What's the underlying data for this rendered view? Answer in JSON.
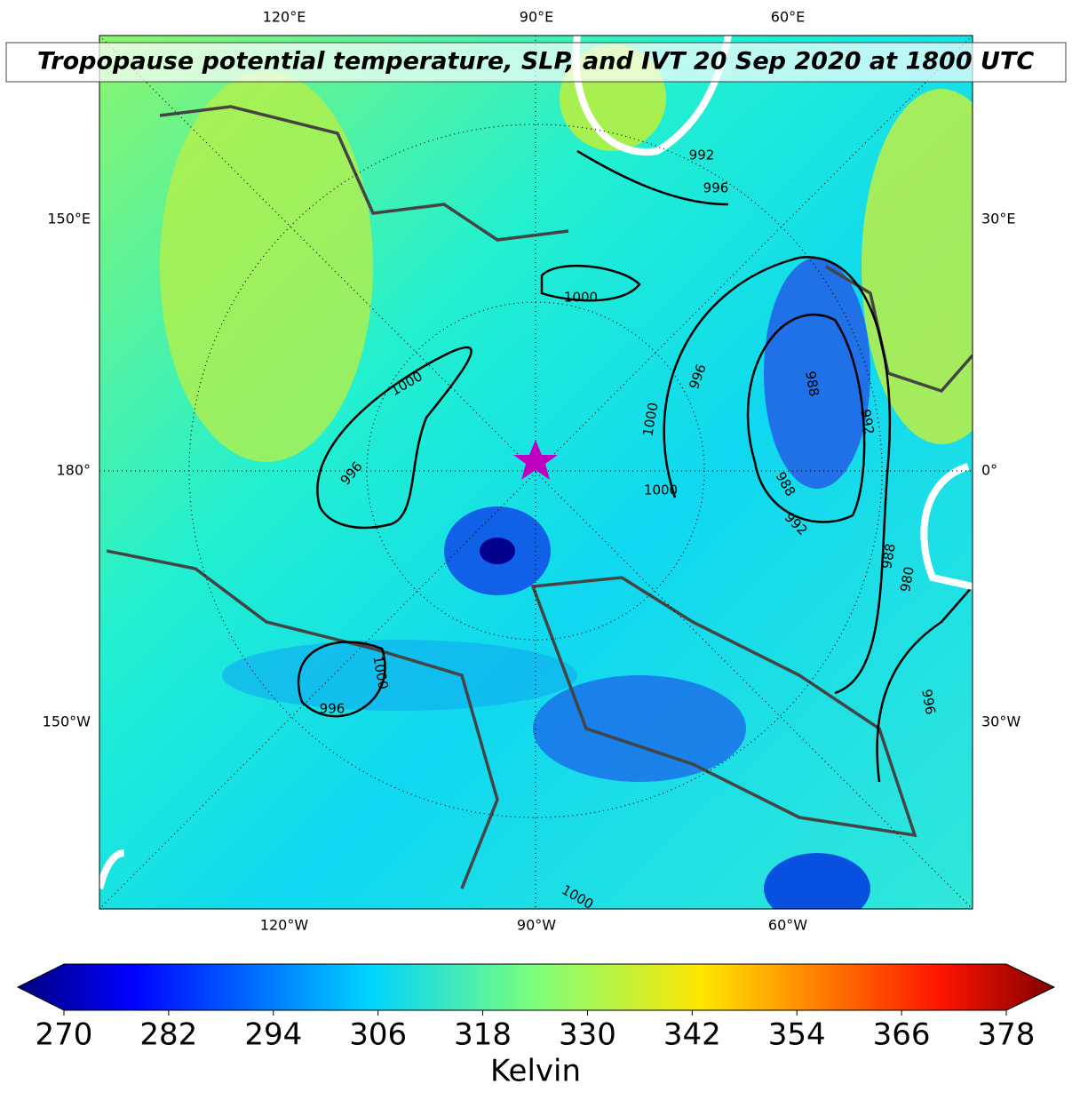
{
  "title": "Tropopause potential temperature, SLP, and IVT 20 Sep 2020 at 1800 UTC",
  "lon_labels": {
    "top": [
      "120°E",
      "90°E",
      "60°E"
    ],
    "left": [
      "150°E",
      "180°",
      "150°W"
    ],
    "right": [
      "30°E",
      "0°",
      "30°W"
    ],
    "bottom": [
      "120°W",
      "90°W",
      "60°W"
    ]
  },
  "slp_contour_labels": [
    1000,
    996,
    1000,
    1000,
    1000,
    996,
    988,
    992,
    988,
    992,
    988,
    980,
    996,
    1000,
    996,
    992,
    996,
    1000
  ],
  "colorbar": {
    "lim": [
      270,
      378
    ],
    "ticks": [
      270,
      282,
      294,
      306,
      318,
      330,
      342,
      354,
      366,
      378
    ],
    "label": "Kelvin"
  }
}
